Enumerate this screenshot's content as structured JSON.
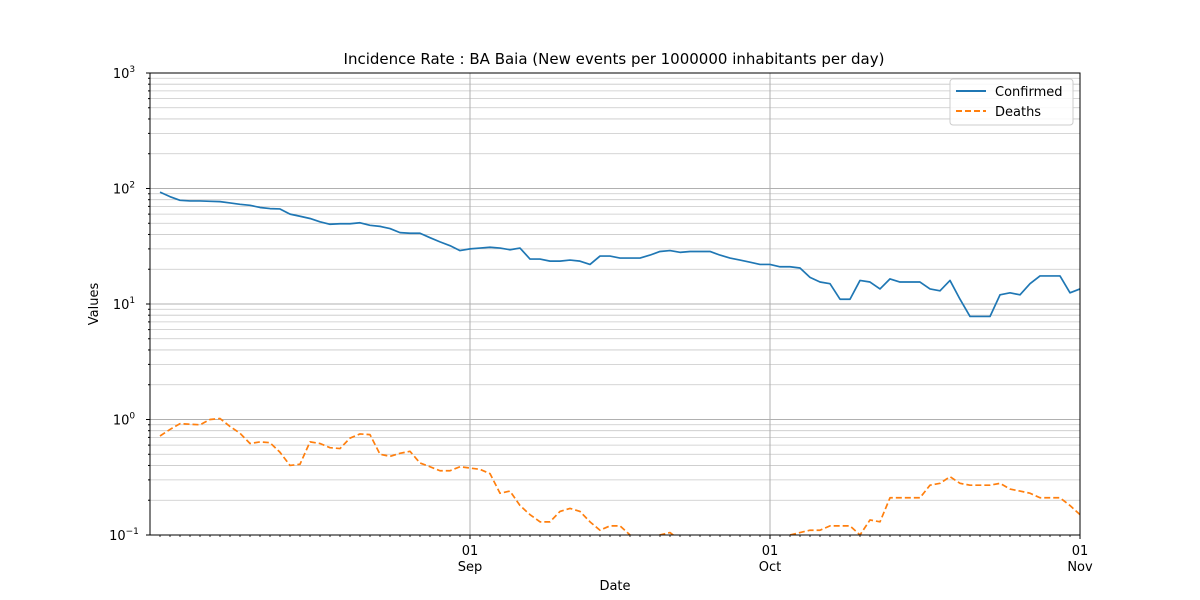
{
  "chart_data": {
    "type": "line",
    "title": "Incidence Rate : BA Baia (New events per 1000000 inhabitants per day)",
    "xlabel": "Date",
    "ylabel": "Values",
    "yscale": "log",
    "ylim": [
      0.1,
      1000
    ],
    "xlim": [
      "2020-07-31",
      "2020-11-01"
    ],
    "grid": true,
    "legend_position": "top-right",
    "y_tick_labels": [
      "10^-1",
      "10^0",
      "10^1",
      "10^2",
      "10^3"
    ],
    "x_ticks": [
      {
        "date": "2020-09-01",
        "day": "01",
        "month": "Sep"
      },
      {
        "date": "2020-10-01",
        "day": "01",
        "month": "Oct"
      },
      {
        "date": "2020-11-01",
        "day": "01",
        "month": "Nov"
      }
    ],
    "series": [
      {
        "name": "Confirmed",
        "color": "#1f77b4",
        "dash": "solid",
        "points": [
          [
            "2020-08-01",
            93
          ],
          [
            "2020-08-02",
            85
          ],
          [
            "2020-08-03",
            79
          ],
          [
            "2020-08-04",
            78
          ],
          [
            "2020-08-05",
            78
          ],
          [
            "2020-08-06",
            77.5
          ],
          [
            "2020-08-07",
            77
          ],
          [
            "2020-08-08",
            75
          ],
          [
            "2020-08-09",
            73
          ],
          [
            "2020-08-10",
            71.5
          ],
          [
            "2020-08-11",
            68.5
          ],
          [
            "2020-08-12",
            67
          ],
          [
            "2020-08-13",
            66.5
          ],
          [
            "2020-08-14",
            60
          ],
          [
            "2020-08-15",
            57.5
          ],
          [
            "2020-08-16",
            55
          ],
          [
            "2020-08-17",
            51.5
          ],
          [
            "2020-08-18",
            49
          ],
          [
            "2020-08-19",
            49.5
          ],
          [
            "2020-08-20",
            49.5
          ],
          [
            "2020-08-21",
            50.5
          ],
          [
            "2020-08-22",
            48
          ],
          [
            "2020-08-23",
            47
          ],
          [
            "2020-08-24",
            45
          ],
          [
            "2020-08-25",
            41.5
          ],
          [
            "2020-08-26",
            41
          ],
          [
            "2020-08-27",
            41
          ],
          [
            "2020-08-28",
            37.5
          ],
          [
            "2020-08-29",
            34.5
          ],
          [
            "2020-08-30",
            32
          ],
          [
            "2020-08-31",
            29
          ],
          [
            "2020-09-01",
            30
          ],
          [
            "2020-09-02",
            30.5
          ],
          [
            "2020-09-03",
            31
          ],
          [
            "2020-09-04",
            30.5
          ],
          [
            "2020-09-05",
            29.5
          ],
          [
            "2020-09-06",
            30.5
          ],
          [
            "2020-09-07",
            24.5
          ],
          [
            "2020-09-08",
            24.5
          ],
          [
            "2020-09-09",
            23.5
          ],
          [
            "2020-09-10",
            23.5
          ],
          [
            "2020-09-11",
            24
          ],
          [
            "2020-09-12",
            23.5
          ],
          [
            "2020-09-13",
            22
          ],
          [
            "2020-09-14",
            26
          ],
          [
            "2020-09-15",
            26
          ],
          [
            "2020-09-16",
            25
          ],
          [
            "2020-09-17",
            25
          ],
          [
            "2020-09-18",
            25
          ],
          [
            "2020-09-19",
            26.5
          ],
          [
            "2020-09-20",
            28.5
          ],
          [
            "2020-09-21",
            29
          ],
          [
            "2020-09-22",
            28
          ],
          [
            "2020-09-23",
            28.5
          ],
          [
            "2020-09-24",
            28.5
          ],
          [
            "2020-09-25",
            28.5
          ],
          [
            "2020-09-26",
            26.5
          ],
          [
            "2020-09-27",
            25
          ],
          [
            "2020-09-28",
            24
          ],
          [
            "2020-09-29",
            23
          ],
          [
            "2020-09-30",
            22
          ],
          [
            "2020-10-01",
            22
          ],
          [
            "2020-10-02",
            21
          ],
          [
            "2020-10-03",
            21
          ],
          [
            "2020-10-04",
            20.5
          ],
          [
            "2020-10-05",
            17
          ],
          [
            "2020-10-06",
            15.5
          ],
          [
            "2020-10-07",
            15
          ],
          [
            "2020-10-08",
            11
          ],
          [
            "2020-10-09",
            11
          ],
          [
            "2020-10-10",
            16
          ],
          [
            "2020-10-11",
            15.5
          ],
          [
            "2020-10-12",
            13.5
          ],
          [
            "2020-10-13",
            16.5
          ],
          [
            "2020-10-14",
            15.5
          ],
          [
            "2020-10-15",
            15.5
          ],
          [
            "2020-10-16",
            15.5
          ],
          [
            "2020-10-17",
            13.5
          ],
          [
            "2020-10-18",
            13
          ],
          [
            "2020-10-19",
            16
          ],
          [
            "2020-10-20",
            11
          ],
          [
            "2020-10-21",
            7.8
          ],
          [
            "2020-10-22",
            7.8
          ],
          [
            "2020-10-23",
            7.8
          ],
          [
            "2020-10-24",
            12
          ],
          [
            "2020-10-25",
            12.5
          ],
          [
            "2020-10-26",
            12
          ],
          [
            "2020-10-27",
            15
          ],
          [
            "2020-10-28",
            17.5
          ],
          [
            "2020-10-29",
            17.5
          ],
          [
            "2020-10-30",
            17.5
          ],
          [
            "2020-10-31",
            12.5
          ],
          [
            "2020-11-01",
            13.5
          ]
        ]
      },
      {
        "name": "Deaths",
        "color": "#ff7f0e",
        "dash": "dashed",
        "points": [
          [
            "2020-08-01",
            0.72
          ],
          [
            "2020-08-02",
            0.82
          ],
          [
            "2020-08-03",
            0.92
          ],
          [
            "2020-08-04",
            0.91
          ],
          [
            "2020-08-05",
            0.9
          ],
          [
            "2020-08-06",
            1.0
          ],
          [
            "2020-08-07",
            1.02
          ],
          [
            "2020-08-08",
            0.87
          ],
          [
            "2020-08-09",
            0.76
          ],
          [
            "2020-08-10",
            0.62
          ],
          [
            "2020-08-11",
            0.64
          ],
          [
            "2020-08-12",
            0.63
          ],
          [
            "2020-08-13",
            0.52
          ],
          [
            "2020-08-14",
            0.4
          ],
          [
            "2020-08-15",
            0.41
          ],
          [
            "2020-08-16",
            0.64
          ],
          [
            "2020-08-17",
            0.62
          ],
          [
            "2020-08-18",
            0.57
          ],
          [
            "2020-08-19",
            0.56
          ],
          [
            "2020-08-20",
            0.69
          ],
          [
            "2020-08-21",
            0.75
          ],
          [
            "2020-08-22",
            0.74
          ],
          [
            "2020-08-23",
            0.5
          ],
          [
            "2020-08-24",
            0.48
          ],
          [
            "2020-08-25",
            0.51
          ],
          [
            "2020-08-26",
            0.53
          ],
          [
            "2020-08-27",
            0.42
          ],
          [
            "2020-08-28",
            0.39
          ],
          [
            "2020-08-29",
            0.36
          ],
          [
            "2020-08-30",
            0.36
          ],
          [
            "2020-08-31",
            0.39
          ],
          [
            "2020-09-01",
            0.38
          ],
          [
            "2020-09-02",
            0.37
          ],
          [
            "2020-09-03",
            0.34
          ],
          [
            "2020-09-04",
            0.23
          ],
          [
            "2020-09-05",
            0.24
          ],
          [
            "2020-09-06",
            0.18
          ],
          [
            "2020-09-07",
            0.15
          ],
          [
            "2020-09-08",
            0.13
          ],
          [
            "2020-09-09",
            0.13
          ],
          [
            "2020-09-10",
            0.16
          ],
          [
            "2020-09-11",
            0.17
          ],
          [
            "2020-09-12",
            0.16
          ],
          [
            "2020-09-13",
            0.13
          ],
          [
            "2020-09-14",
            0.11
          ],
          [
            "2020-09-15",
            0.12
          ],
          [
            "2020-09-16",
            0.12
          ],
          [
            "2020-09-17",
            0.1
          ],
          [
            "2020-09-18",
            0.09
          ],
          [
            "2020-09-19",
            0.09
          ],
          [
            "2020-09-20",
            0.1
          ],
          [
            "2020-09-21",
            0.105
          ],
          [
            "2020-09-22",
            0.09
          ],
          [
            "2020-09-23",
            0.09
          ],
          [
            "2020-09-24",
            0.09
          ],
          [
            "2020-09-25",
            0.09
          ],
          [
            "2020-09-26",
            0.09
          ],
          [
            "2020-09-27",
            0.09
          ],
          [
            "2020-09-28",
            0.09
          ],
          [
            "2020-09-29",
            0.09
          ],
          [
            "2020-09-30",
            0.09
          ],
          [
            "2020-10-01",
            0.09
          ],
          [
            "2020-10-02",
            0.09
          ],
          [
            "2020-10-03",
            0.1
          ],
          [
            "2020-10-04",
            0.105
          ],
          [
            "2020-10-05",
            0.11
          ],
          [
            "2020-10-06",
            0.11
          ],
          [
            "2020-10-07",
            0.12
          ],
          [
            "2020-10-08",
            0.12
          ],
          [
            "2020-10-09",
            0.12
          ],
          [
            "2020-10-10",
            0.1
          ],
          [
            "2020-10-11",
            0.135
          ],
          [
            "2020-10-12",
            0.13
          ],
          [
            "2020-10-13",
            0.21
          ],
          [
            "2020-10-14",
            0.21
          ],
          [
            "2020-10-15",
            0.21
          ],
          [
            "2020-10-16",
            0.21
          ],
          [
            "2020-10-17",
            0.27
          ],
          [
            "2020-10-18",
            0.28
          ],
          [
            "2020-10-19",
            0.32
          ],
          [
            "2020-10-20",
            0.28
          ],
          [
            "2020-10-21",
            0.27
          ],
          [
            "2020-10-22",
            0.27
          ],
          [
            "2020-10-23",
            0.27
          ],
          [
            "2020-10-24",
            0.28
          ],
          [
            "2020-10-25",
            0.25
          ],
          [
            "2020-10-26",
            0.24
          ],
          [
            "2020-10-27",
            0.23
          ],
          [
            "2020-10-28",
            0.21
          ],
          [
            "2020-10-29",
            0.21
          ],
          [
            "2020-10-30",
            0.21
          ],
          [
            "2020-10-31",
            0.18
          ],
          [
            "2020-11-01",
            0.15
          ]
        ]
      }
    ]
  }
}
